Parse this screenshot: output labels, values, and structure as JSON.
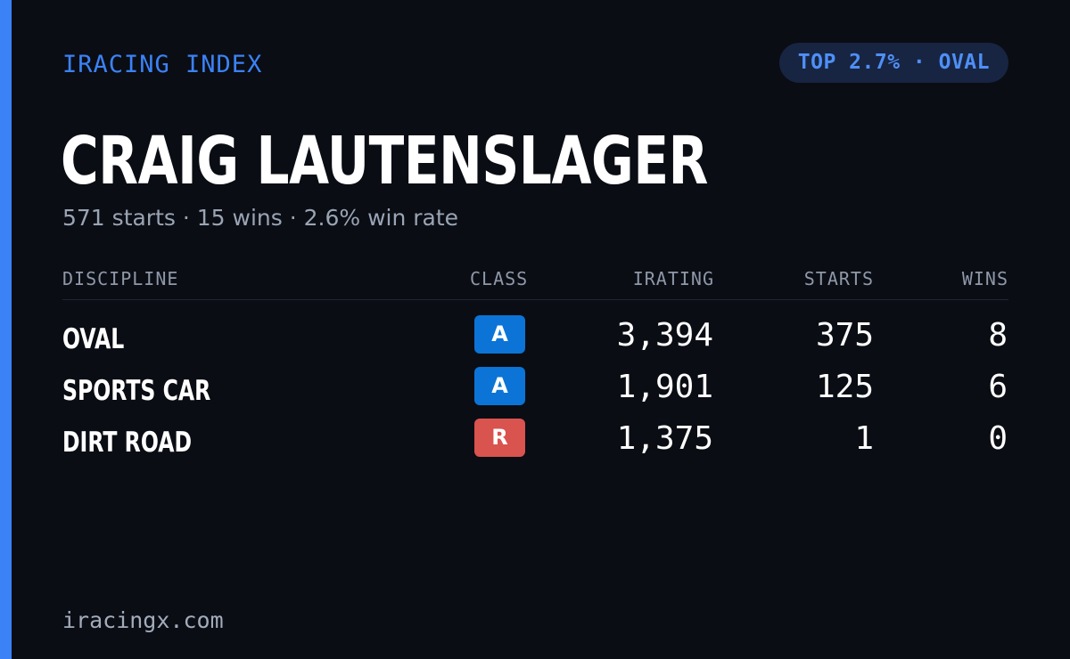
{
  "brand": "IRACING INDEX",
  "rank_badge": "TOP 2.7% · OVAL",
  "driver": {
    "name": "CRAIG LAUTENSLAGER",
    "summary": "571 starts · 15 wins · 2.6% win rate"
  },
  "colors": {
    "accent": "#3b82f6",
    "background": "#0a0d14",
    "class_a": "#0b74d6",
    "class_r": "#d9534f"
  },
  "table": {
    "headers": {
      "discipline": "DISCIPLINE",
      "class": "CLASS",
      "irating": "IRATING",
      "starts": "STARTS",
      "wins": "WINS"
    },
    "rows": [
      {
        "discipline": "OVAL",
        "class": "A",
        "class_color": "#0b74d6",
        "irating": "3,394",
        "starts": "375",
        "wins": "8"
      },
      {
        "discipline": "SPORTS CAR",
        "class": "A",
        "class_color": "#0b74d6",
        "irating": "1,901",
        "starts": "125",
        "wins": "6"
      },
      {
        "discipline": "DIRT ROAD",
        "class": "R",
        "class_color": "#d9534f",
        "irating": "1,375",
        "starts": "1",
        "wins": "0"
      }
    ]
  },
  "footer": {
    "url": "iracingx.com"
  }
}
